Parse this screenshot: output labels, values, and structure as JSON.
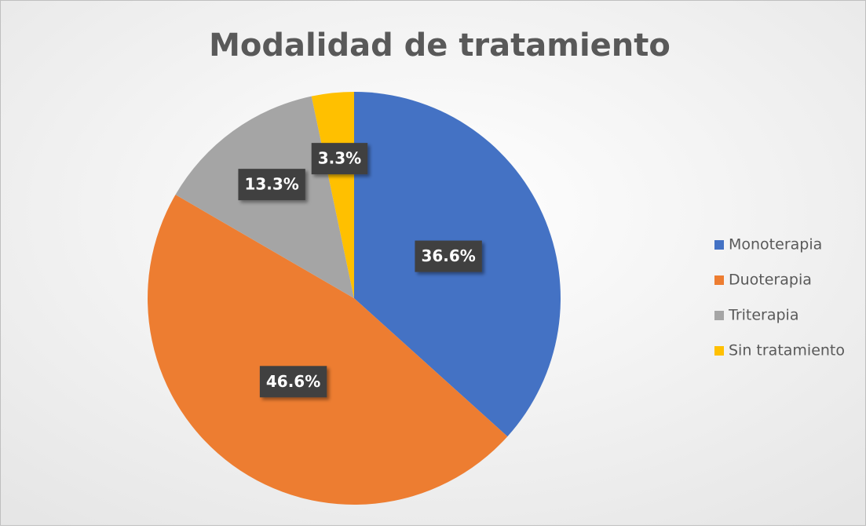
{
  "chart_data": {
    "type": "pie",
    "title": "Modalidad de tratamiento",
    "categories": [
      "Monoterapia",
      "Duoterapia",
      "Triterapia",
      "Sin tratamiento"
    ],
    "values": [
      36.6,
      46.6,
      13.3,
      3.3
    ],
    "value_labels": [
      "36.6%",
      "46.6%",
      "13.3%",
      "3.3%"
    ],
    "colors": [
      "#4472c4",
      "#ed7d31",
      "#a5a5a5",
      "#ffc000"
    ],
    "legend": "right"
  }
}
